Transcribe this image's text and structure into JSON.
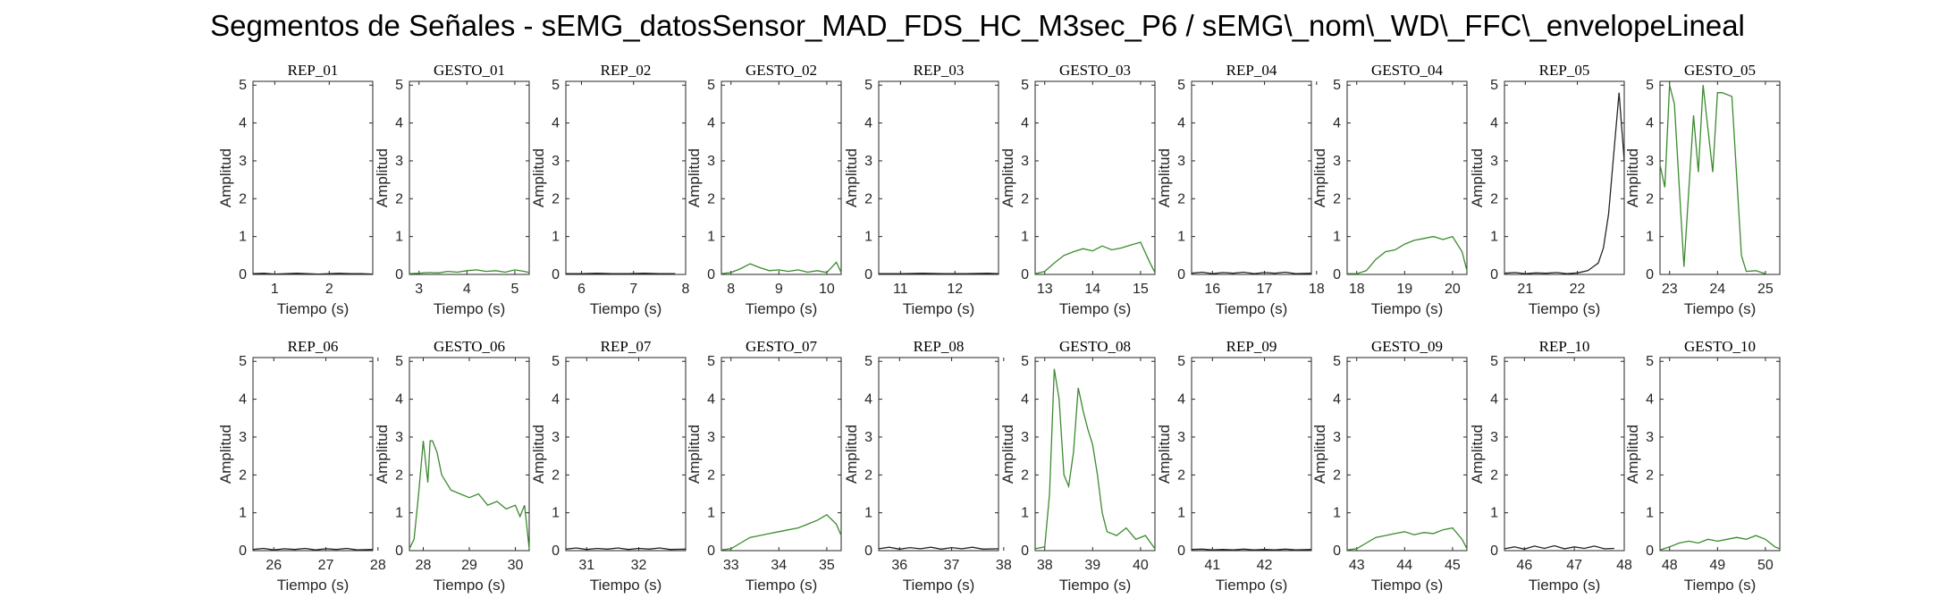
{
  "title": "Segmentos de Señales - sEMG_datosSensor_MAD_FDS_HC_M3sec_P6 / sEMG\\_nom\\_WD\\_FFC\\_envelopeLineal",
  "colors": {
    "rep": "#262626",
    "gesto": "#3b8a2e",
    "axis": "#262626"
  },
  "chart_data": [
    {
      "title": "REP_01",
      "type": "line",
      "xlabel": "Tiempo (s)",
      "ylabel": "Amplitud",
      "xlim": [
        0.6,
        2.8
      ],
      "ylim": [
        0,
        5.1
      ],
      "xticks": [
        1,
        2
      ],
      "yticks": [
        0,
        1,
        2,
        3,
        4,
        5
      ],
      "color": "#262626",
      "series": [
        {
          "x": [
            0.6,
            0.8,
            1.0,
            1.2,
            1.4,
            1.6,
            1.8,
            2.0,
            2.2,
            2.4,
            2.6,
            2.8
          ],
          "y": [
            0.02,
            0.03,
            0.01,
            0.02,
            0.03,
            0.02,
            0.01,
            0.02,
            0.03,
            0.02,
            0.02,
            0.01
          ]
        }
      ]
    },
    {
      "title": "GESTO_01",
      "type": "line",
      "xlabel": "Tiempo (s)",
      "ylabel": "Amplitud",
      "xlim": [
        2.8,
        5.3
      ],
      "ylim": [
        0,
        5.1
      ],
      "xticks": [
        3,
        4,
        5
      ],
      "yticks": [
        0,
        1,
        2,
        3,
        4,
        5
      ],
      "color": "#3b8a2e",
      "series": [
        {
          "x": [
            2.8,
            3.0,
            3.2,
            3.4,
            3.6,
            3.8,
            4.0,
            4.2,
            4.4,
            4.6,
            4.8,
            5.0,
            5.2,
            5.3
          ],
          "y": [
            0.02,
            0.03,
            0.05,
            0.04,
            0.08,
            0.06,
            0.1,
            0.12,
            0.08,
            0.1,
            0.06,
            0.12,
            0.08,
            0.05
          ]
        }
      ]
    },
    {
      "title": "REP_02",
      "type": "line",
      "xlabel": "Tiempo (s)",
      "ylabel": "Amplitud",
      "xlim": [
        5.7,
        8.0
      ],
      "ylim": [
        0,
        5.1
      ],
      "xticks": [
        6,
        7,
        8
      ],
      "yticks": [
        0,
        1,
        2,
        3,
        4,
        5
      ],
      "color": "#262626",
      "series": [
        {
          "x": [
            5.7,
            6.0,
            6.3,
            6.6,
            6.9,
            7.2,
            7.5,
            7.8
          ],
          "y": [
            0.02,
            0.02,
            0.03,
            0.02,
            0.02,
            0.03,
            0.02,
            0.02
          ]
        }
      ]
    },
    {
      "title": "GESTO_02",
      "type": "line",
      "xlabel": "Tiempo (s)",
      "ylabel": "Amplitud",
      "xlim": [
        7.8,
        10.3
      ],
      "ylim": [
        0,
        5.1
      ],
      "xticks": [
        8,
        9,
        10
      ],
      "yticks": [
        0,
        1,
        2,
        3,
        4,
        5
      ],
      "color": "#3b8a2e",
      "series": [
        {
          "x": [
            7.8,
            8.0,
            8.2,
            8.4,
            8.6,
            8.8,
            9.0,
            9.2,
            9.4,
            9.6,
            9.8,
            10.0,
            10.2,
            10.3
          ],
          "y": [
            0.02,
            0.05,
            0.15,
            0.28,
            0.18,
            0.1,
            0.12,
            0.08,
            0.12,
            0.06,
            0.1,
            0.05,
            0.32,
            0.05
          ]
        }
      ]
    },
    {
      "title": "REP_03",
      "type": "line",
      "xlabel": "Tiempo (s)",
      "ylabel": "Amplitud",
      "xlim": [
        10.6,
        12.8
      ],
      "ylim": [
        0,
        5.1
      ],
      "xticks": [
        11,
        12
      ],
      "yticks": [
        0,
        1,
        2,
        3,
        4,
        5
      ],
      "color": "#262626",
      "series": [
        {
          "x": [
            10.6,
            11.0,
            11.4,
            11.8,
            12.2,
            12.6,
            12.8
          ],
          "y": [
            0.02,
            0.02,
            0.03,
            0.02,
            0.02,
            0.03,
            0.02
          ]
        }
      ]
    },
    {
      "title": "GESTO_03",
      "type": "line",
      "xlabel": "Tiempo (s)",
      "ylabel": "Amplitud",
      "xlim": [
        12.8,
        15.3
      ],
      "ylim": [
        0,
        5.1
      ],
      "xticks": [
        13,
        14,
        15
      ],
      "yticks": [
        0,
        1,
        2,
        3,
        4,
        5
      ],
      "color": "#3b8a2e",
      "series": [
        {
          "x": [
            12.8,
            13.0,
            13.2,
            13.4,
            13.6,
            13.8,
            14.0,
            14.2,
            14.4,
            14.6,
            14.8,
            15.0,
            15.2,
            15.3
          ],
          "y": [
            0.02,
            0.08,
            0.3,
            0.5,
            0.6,
            0.68,
            0.62,
            0.75,
            0.65,
            0.7,
            0.78,
            0.85,
            0.3,
            0.05
          ]
        }
      ]
    },
    {
      "title": "REP_04",
      "type": "line",
      "xlabel": "Tiempo (s)",
      "ylabel": "Amplitud",
      "xlim": [
        15.6,
        17.9
      ],
      "ylim": [
        0,
        5.1
      ],
      "xticks": [
        16,
        17,
        18
      ],
      "yticks": [
        0,
        1,
        2,
        3,
        4,
        5
      ],
      "color": "#262626",
      "series": [
        {
          "x": [
            15.6,
            15.8,
            16.0,
            16.2,
            16.4,
            16.6,
            16.8,
            17.0,
            17.2,
            17.4,
            17.6,
            17.9
          ],
          "y": [
            0.03,
            0.06,
            0.02,
            0.05,
            0.03,
            0.06,
            0.02,
            0.05,
            0.03,
            0.06,
            0.02,
            0.03
          ]
        }
      ]
    },
    {
      "title": "GESTO_04",
      "type": "line",
      "xlabel": "Tiempo (s)",
      "ylabel": "Amplitud",
      "xlim": [
        17.8,
        20.3
      ],
      "ylim": [
        0,
        5.1
      ],
      "xticks": [
        18,
        19,
        20
      ],
      "yticks": [
        0,
        1,
        2,
        3,
        4,
        5
      ],
      "color": "#3b8a2e",
      "series": [
        {
          "x": [
            17.8,
            18.0,
            18.2,
            18.4,
            18.6,
            18.8,
            19.0,
            19.2,
            19.4,
            19.6,
            19.8,
            20.0,
            20.2,
            20.3
          ],
          "y": [
            0.02,
            0.02,
            0.1,
            0.4,
            0.6,
            0.65,
            0.8,
            0.9,
            0.95,
            1.0,
            0.92,
            1.0,
            0.6,
            0.1
          ]
        }
      ]
    },
    {
      "title": "REP_05",
      "type": "line",
      "xlabel": "Tiempo (s)",
      "ylabel": "Amplitud",
      "xlim": [
        20.6,
        22.9
      ],
      "ylim": [
        0,
        5.1
      ],
      "xticks": [
        21,
        22
      ],
      "yticks": [
        0,
        1,
        2,
        3,
        4,
        5
      ],
      "color": "#262626",
      "series": [
        {
          "x": [
            20.6,
            20.8,
            21.0,
            21.2,
            21.4,
            21.6,
            21.8,
            22.0,
            22.2,
            22.4,
            22.5,
            22.6,
            22.7,
            22.8,
            22.9
          ],
          "y": [
            0.03,
            0.05,
            0.02,
            0.04,
            0.03,
            0.05,
            0.02,
            0.04,
            0.1,
            0.3,
            0.7,
            1.6,
            3.2,
            4.8,
            3.0
          ]
        }
      ]
    },
    {
      "title": "GESTO_05",
      "type": "line",
      "xlabel": "Tiempo (s)",
      "ylabel": "Amplitud",
      "xlim": [
        22.8,
        25.3
      ],
      "ylim": [
        0,
        5.1
      ],
      "xticks": [
        23,
        24,
        25
      ],
      "yticks": [
        0,
        1,
        2,
        3,
        4,
        5
      ],
      "color": "#3b8a2e",
      "series": [
        {
          "x": [
            22.8,
            22.9,
            23.0,
            23.1,
            23.3,
            23.5,
            23.6,
            23.7,
            23.9,
            24.0,
            24.1,
            24.3,
            24.5,
            24.6,
            24.8,
            25.0
          ],
          "y": [
            2.9,
            2.3,
            5.0,
            4.5,
            0.2,
            4.2,
            2.7,
            5.0,
            2.7,
            4.8,
            4.8,
            4.7,
            0.5,
            0.08,
            0.1,
            0.02
          ]
        }
      ]
    },
    {
      "title": "REP_06",
      "type": "line",
      "xlabel": "Tiempo (s)",
      "ylabel": "Amplitud",
      "xlim": [
        25.6,
        27.9
      ],
      "ylim": [
        0,
        5.1
      ],
      "xticks": [
        26,
        27,
        28
      ],
      "yticks": [
        0,
        1,
        2,
        3,
        4,
        5
      ],
      "color": "#262626",
      "series": [
        {
          "x": [
            25.6,
            25.8,
            26.0,
            26.2,
            26.4,
            26.6,
            26.8,
            27.0,
            27.2,
            27.4,
            27.6,
            27.9
          ],
          "y": [
            0.03,
            0.06,
            0.02,
            0.05,
            0.03,
            0.06,
            0.02,
            0.05,
            0.03,
            0.06,
            0.02,
            0.03
          ]
        }
      ]
    },
    {
      "title": "GESTO_06",
      "type": "line",
      "xlabel": "Tiempo (s)",
      "ylabel": "Amplitud",
      "xlim": [
        27.7,
        30.3
      ],
      "ylim": [
        0,
        5.1
      ],
      "xticks": [
        28,
        29,
        30
      ],
      "yticks": [
        0,
        1,
        2,
        3,
        4,
        5
      ],
      "color": "#3b8a2e",
      "series": [
        {
          "x": [
            27.7,
            27.8,
            27.9,
            28.0,
            28.1,
            28.15,
            28.2,
            28.3,
            28.4,
            28.6,
            28.8,
            29.0,
            29.2,
            29.4,
            29.6,
            29.8,
            30.0,
            30.1,
            30.2,
            30.3
          ],
          "y": [
            0.05,
            0.3,
            1.5,
            2.9,
            1.8,
            2.9,
            2.9,
            2.6,
            2.0,
            1.6,
            1.5,
            1.4,
            1.5,
            1.2,
            1.3,
            1.1,
            1.2,
            0.9,
            1.2,
            0.05
          ]
        }
      ]
    },
    {
      "title": "REP_07",
      "type": "line",
      "xlabel": "Tiempo (s)",
      "ylabel": "Amplitud",
      "xlim": [
        30.6,
        32.9
      ],
      "ylim": [
        0,
        5.1
      ],
      "xticks": [
        31,
        32
      ],
      "yticks": [
        0,
        1,
        2,
        3,
        4,
        5
      ],
      "color": "#262626",
      "series": [
        {
          "x": [
            30.6,
            30.8,
            31.0,
            31.2,
            31.4,
            31.6,
            31.8,
            32.0,
            32.2,
            32.4,
            32.6,
            32.9
          ],
          "y": [
            0.04,
            0.07,
            0.03,
            0.06,
            0.04,
            0.07,
            0.03,
            0.06,
            0.04,
            0.07,
            0.03,
            0.04
          ]
        }
      ]
    },
    {
      "title": "GESTO_07",
      "type": "line",
      "xlabel": "Tiempo (s)",
      "ylabel": "Amplitud",
      "xlim": [
        32.8,
        35.3
      ],
      "ylim": [
        0,
        5.1
      ],
      "xticks": [
        33,
        34,
        35
      ],
      "yticks": [
        0,
        1,
        2,
        3,
        4,
        5
      ],
      "color": "#3b8a2e",
      "series": [
        {
          "x": [
            32.8,
            33.0,
            33.2,
            33.4,
            33.6,
            33.8,
            34.0,
            34.2,
            34.4,
            34.6,
            34.8,
            35.0,
            35.2,
            35.3
          ],
          "y": [
            0.02,
            0.05,
            0.2,
            0.35,
            0.4,
            0.45,
            0.5,
            0.55,
            0.6,
            0.7,
            0.8,
            0.95,
            0.7,
            0.4
          ]
        }
      ]
    },
    {
      "title": "REP_08",
      "type": "line",
      "xlabel": "Tiempo (s)",
      "ylabel": "Amplitud",
      "xlim": [
        35.6,
        37.9
      ],
      "ylim": [
        0,
        5.1
      ],
      "xticks": [
        36,
        37,
        38
      ],
      "yticks": [
        0,
        1,
        2,
        3,
        4,
        5
      ],
      "color": "#262626",
      "series": [
        {
          "x": [
            35.6,
            35.8,
            36.0,
            36.2,
            36.4,
            36.6,
            36.8,
            37.0,
            37.2,
            37.4,
            37.6,
            37.9
          ],
          "y": [
            0.05,
            0.09,
            0.04,
            0.08,
            0.05,
            0.09,
            0.04,
            0.08,
            0.05,
            0.09,
            0.04,
            0.05
          ]
        }
      ]
    },
    {
      "title": "GESTO_08",
      "type": "line",
      "xlabel": "Tiempo (s)",
      "ylabel": "Amplitud",
      "xlim": [
        37.8,
        40.3
      ],
      "ylim": [
        0,
        5.1
      ],
      "xticks": [
        38,
        39,
        40
      ],
      "yticks": [
        0,
        1,
        2,
        3,
        4,
        5
      ],
      "color": "#3b8a2e",
      "series": [
        {
          "x": [
            37.8,
            38.0,
            38.1,
            38.2,
            38.3,
            38.4,
            38.5,
            38.6,
            38.7,
            38.8,
            38.9,
            39.0,
            39.1,
            39.2,
            39.3,
            39.5,
            39.7,
            39.9,
            40.1,
            40.3
          ],
          "y": [
            0.05,
            0.1,
            1.5,
            4.8,
            4.0,
            2.0,
            1.7,
            2.6,
            4.3,
            3.7,
            3.2,
            2.8,
            2.0,
            1.0,
            0.5,
            0.4,
            0.6,
            0.3,
            0.4,
            0.05
          ]
        }
      ]
    },
    {
      "title": "REP_09",
      "type": "line",
      "xlabel": "Tiempo (s)",
      "ylabel": "Amplitud",
      "xlim": [
        40.6,
        42.9
      ],
      "ylim": [
        0,
        5.1
      ],
      "xticks": [
        41,
        42
      ],
      "yticks": [
        0,
        1,
        2,
        3,
        4,
        5
      ],
      "color": "#262626",
      "series": [
        {
          "x": [
            40.6,
            40.8,
            41.0,
            41.2,
            41.4,
            41.6,
            41.8,
            42.0,
            42.2,
            42.4,
            42.6,
            42.9
          ],
          "y": [
            0.03,
            0.04,
            0.02,
            0.03,
            0.02,
            0.04,
            0.02,
            0.03,
            0.02,
            0.04,
            0.02,
            0.03
          ]
        }
      ]
    },
    {
      "title": "GESTO_09",
      "type": "line",
      "xlabel": "Tiempo (s)",
      "ylabel": "Amplitud",
      "xlim": [
        42.8,
        45.3
      ],
      "ylim": [
        0,
        5.1
      ],
      "xticks": [
        43,
        44,
        45
      ],
      "yticks": [
        0,
        1,
        2,
        3,
        4,
        5
      ],
      "color": "#3b8a2e",
      "series": [
        {
          "x": [
            42.8,
            43.0,
            43.2,
            43.4,
            43.6,
            43.8,
            44.0,
            44.2,
            44.4,
            44.6,
            44.8,
            45.0,
            45.2,
            45.3
          ],
          "y": [
            0.02,
            0.05,
            0.2,
            0.35,
            0.4,
            0.45,
            0.5,
            0.42,
            0.48,
            0.45,
            0.55,
            0.6,
            0.3,
            0.05
          ]
        }
      ]
    },
    {
      "title": "REP_10",
      "type": "line",
      "xlabel": "Tiempo (s)",
      "ylabel": "Amplitud",
      "xlim": [
        45.6,
        48.0
      ],
      "ylim": [
        0,
        5.1
      ],
      "xticks": [
        46,
        47,
        48
      ],
      "yticks": [
        0,
        1,
        2,
        3,
        4,
        5
      ],
      "color": "#262626",
      "series": [
        {
          "x": [
            45.6,
            45.8,
            46.0,
            46.2,
            46.4,
            46.6,
            46.8,
            47.0,
            47.2,
            47.4,
            47.6,
            47.8
          ],
          "y": [
            0.05,
            0.1,
            0.04,
            0.12,
            0.06,
            0.13,
            0.05,
            0.1,
            0.06,
            0.12,
            0.05,
            0.06
          ]
        }
      ]
    },
    {
      "title": "GESTO_10",
      "type": "line",
      "xlabel": "Tiempo (s)",
      "ylabel": "Amplitud",
      "xlim": [
        47.8,
        50.3
      ],
      "ylim": [
        0,
        5.1
      ],
      "xticks": [
        48,
        49,
        50
      ],
      "yticks": [
        0,
        1,
        2,
        3,
        4,
        5
      ],
      "color": "#3b8a2e",
      "series": [
        {
          "x": [
            47.8,
            48.0,
            48.2,
            48.4,
            48.6,
            48.8,
            49.0,
            49.2,
            49.4,
            49.6,
            49.8,
            50.0,
            50.2,
            50.3
          ],
          "y": [
            0.02,
            0.1,
            0.2,
            0.25,
            0.2,
            0.3,
            0.25,
            0.3,
            0.35,
            0.3,
            0.4,
            0.3,
            0.1,
            0.05
          ]
        }
      ]
    }
  ]
}
